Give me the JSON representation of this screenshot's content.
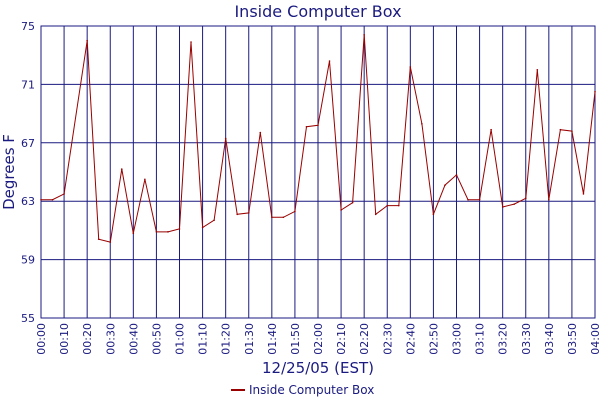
{
  "chart_data": {
    "type": "line",
    "title": "Inside Computer Box",
    "xlabel": "12/25/05 (EST)",
    "ylabel": "Degrees F",
    "ylim": [
      55,
      75
    ],
    "yticks": [
      55,
      59,
      63,
      67,
      71,
      75
    ],
    "xlim": [
      "00:00",
      "04:00"
    ],
    "xticks": [
      "00:00",
      "00:10",
      "00:20",
      "00:30",
      "00:40",
      "00:50",
      "01:00",
      "01:10",
      "01:20",
      "01:30",
      "01:40",
      "01:50",
      "02:00",
      "02:10",
      "02:20",
      "02:30",
      "02:40",
      "02:50",
      "03:00",
      "03:10",
      "03:20",
      "03:30",
      "03:40",
      "03:50",
      "04:00"
    ],
    "grid": true,
    "legend": "bottom-center",
    "series": [
      {
        "name": "Inside Computer Box",
        "color": "#990000",
        "points": [
          [
            "00:00",
            63.1
          ],
          [
            "00:05",
            63.1
          ],
          [
            "00:10",
            63.5
          ],
          [
            "00:20",
            74.0
          ],
          [
            "00:25",
            60.4
          ],
          [
            "00:30",
            60.2
          ],
          [
            "00:35",
            65.2
          ],
          [
            "00:40",
            60.8
          ],
          [
            "00:45",
            64.5
          ],
          [
            "00:50",
            60.9
          ],
          [
            "00:55",
            60.9
          ],
          [
            "01:00",
            61.1
          ],
          [
            "01:05",
            73.9
          ],
          [
            "01:10",
            61.2
          ],
          [
            "01:15",
            61.7
          ],
          [
            "01:20",
            67.3
          ],
          [
            "01:25",
            62.1
          ],
          [
            "01:30",
            62.2
          ],
          [
            "01:35",
            67.7
          ],
          [
            "01:40",
            61.9
          ],
          [
            "01:45",
            61.9
          ],
          [
            "01:50",
            62.3
          ],
          [
            "01:55",
            68.1
          ],
          [
            "02:00",
            68.2
          ],
          [
            "02:05",
            72.6
          ],
          [
            "02:10",
            62.4
          ],
          [
            "02:15",
            62.9
          ],
          [
            "02:20",
            74.4
          ],
          [
            "02:25",
            62.1
          ],
          [
            "02:30",
            62.7
          ],
          [
            "02:35",
            62.7
          ],
          [
            "02:40",
            72.2
          ],
          [
            "02:45",
            68.3
          ],
          [
            "02:50",
            62.1
          ],
          [
            "02:55",
            64.1
          ],
          [
            "03:00",
            64.8
          ],
          [
            "03:05",
            63.1
          ],
          [
            "03:10",
            63.1
          ],
          [
            "03:15",
            67.9
          ],
          [
            "03:20",
            62.6
          ],
          [
            "03:25",
            62.8
          ],
          [
            "03:30",
            63.2
          ],
          [
            "03:35",
            72.0
          ],
          [
            "03:40",
            63.1
          ],
          [
            "03:45",
            67.9
          ],
          [
            "03:50",
            67.8
          ],
          [
            "03:55",
            63.5
          ],
          [
            "04:00",
            70.5
          ]
        ]
      }
    ]
  },
  "colors": {
    "frame": "#1a1a80",
    "grid": "#1a1a80",
    "series": "#990000",
    "text": "#1a1a80",
    "background": "#ffffff"
  }
}
